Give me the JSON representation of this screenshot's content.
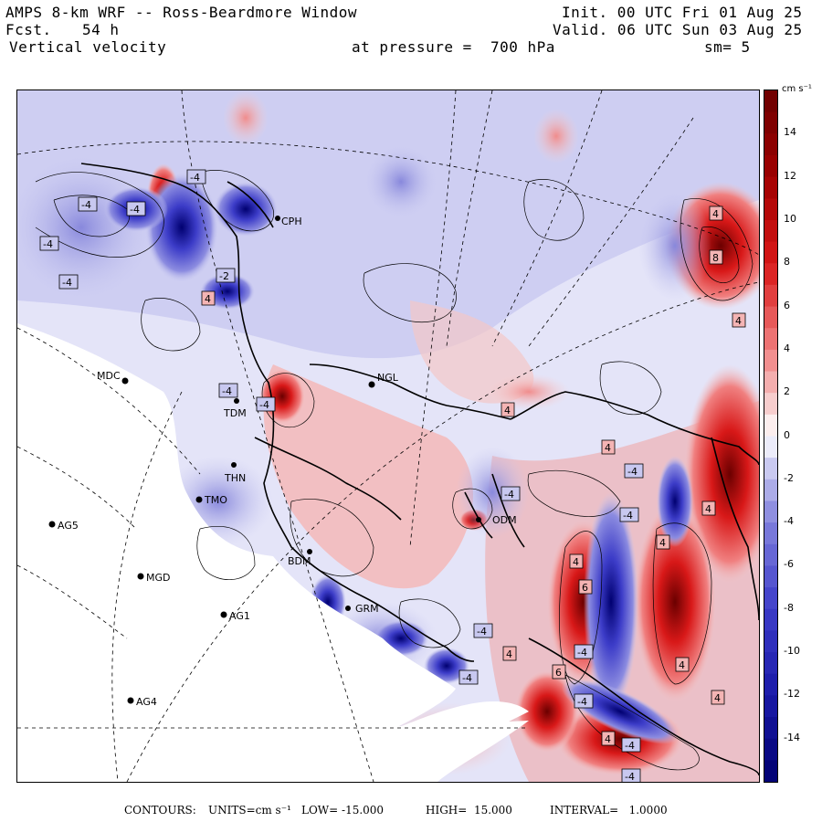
{
  "header": {
    "title": "AMPS 8-km WRF -- Ross-Beardmore Window",
    "forecast_label": "Fcst.",
    "forecast_value": "54 h",
    "field": "Vertical velocity",
    "init": "Init. 00 UTC Fri 01 Aug 25",
    "valid": "Valid. 06 UTC Sun 03 Aug 25",
    "pressure": "at pressure =  700 hPa",
    "smoothing": "sm= 5"
  },
  "colorbar": {
    "unit": "cm s⁻¹",
    "ticks": [
      "14",
      "12",
      "10",
      "8",
      "6",
      "4",
      "2",
      "0",
      "-2",
      "-4",
      "-6",
      "-8",
      "-10",
      "-12",
      "-14"
    ],
    "range": [
      -16,
      16
    ],
    "colors": {
      "dark_red": "#6b0000",
      "red": "#d81818",
      "light_red": "#f4b4b4",
      "white": "#ffffff",
      "light_blue": "#c8c8f0",
      "blue": "#3c3cc8",
      "dark_blue": "#000070"
    }
  },
  "stations": [
    {
      "id": "MDC",
      "label": "MDC"
    },
    {
      "id": "AG5",
      "label": "AG5"
    },
    {
      "id": "MGD",
      "label": "MGD"
    },
    {
      "id": "AG1",
      "label": "AG1"
    },
    {
      "id": "AG4",
      "label": "AG4"
    },
    {
      "id": "NGL",
      "label": "NGL"
    },
    {
      "id": "CPH",
      "label": "CPH"
    },
    {
      "id": "TDM",
      "label": "TDM"
    },
    {
      "id": "THN",
      "label": "THN"
    },
    {
      "id": "TMO",
      "label": "TMO"
    },
    {
      "id": "BDM",
      "label": "BDM"
    },
    {
      "id": "GRM",
      "label": "GRM"
    },
    {
      "id": "ODM",
      "label": "ODM"
    }
  ],
  "contour_labels": [
    {
      "text": "4",
      "sign": "-"
    },
    {
      "text": "4",
      "sign": "-"
    },
    {
      "text": "4",
      "sign": "-"
    },
    {
      "text": "4",
      "sign": "-"
    },
    {
      "text": "4",
      "sign": "-"
    },
    {
      "text": "2",
      "sign": "-"
    },
    {
      "text": "4",
      "sign": "+"
    },
    {
      "text": "4",
      "sign": "-"
    },
    {
      "text": "4",
      "sign": "-"
    },
    {
      "text": "4",
      "sign": "+"
    },
    {
      "text": "4",
      "sign": "+"
    },
    {
      "text": "4",
      "sign": "-"
    },
    {
      "text": "4",
      "sign": "+"
    },
    {
      "text": "8",
      "sign": "+"
    },
    {
      "text": "4",
      "sign": "+"
    },
    {
      "text": "4",
      "sign": "-"
    },
    {
      "text": "4",
      "sign": "+"
    },
    {
      "text": "4",
      "sign": "-"
    },
    {
      "text": "4",
      "sign": "+"
    },
    {
      "text": "6",
      "sign": "+"
    },
    {
      "text": "4",
      "sign": "-"
    },
    {
      "text": "4",
      "sign": "+"
    },
    {
      "text": "4",
      "sign": "-"
    },
    {
      "text": "4",
      "sign": "+"
    },
    {
      "text": "6",
      "sign": "+"
    },
    {
      "text": "4",
      "sign": "+"
    },
    {
      "text": "4",
      "sign": "-"
    },
    {
      "text": "4",
      "sign": "+"
    },
    {
      "text": "4",
      "sign": "-"
    },
    {
      "text": "4",
      "sign": "-"
    },
    {
      "text": "4",
      "sign": "+"
    },
    {
      "text": "4",
      "sign": "-"
    }
  ],
  "footer": {
    "contours": "CONTOURS:",
    "units": "UNITS=cm s⁻¹",
    "low": "LOW= -15.000",
    "high": "HIGH=  15.000",
    "interval": "INTERVAL=   1.0000"
  }
}
